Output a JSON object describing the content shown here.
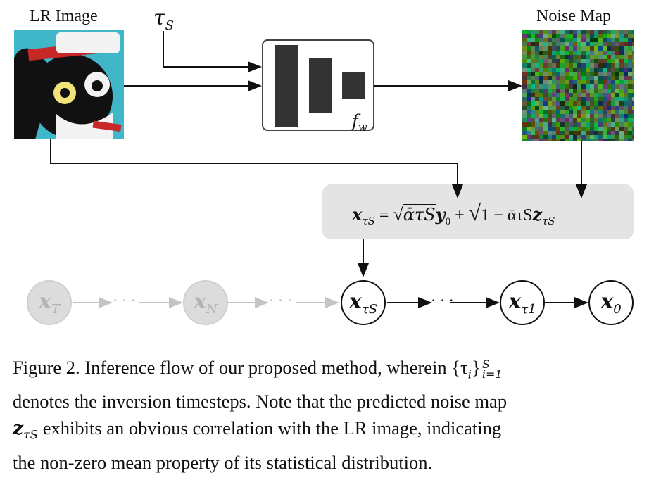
{
  "top": {
    "lr_label": "LR Image",
    "noise_label": "Noise Map",
    "tau_label": "τ",
    "tau_sub": "S",
    "net_label": "f",
    "net_sub": "w"
  },
  "formula": {
    "lhs": "x",
    "lhs_sub": "τS",
    "eq": " = ",
    "term1": "ᾱτS",
    "y": "y",
    "y_sub": "0",
    "plus": " + ",
    "term2": "1 − ᾱτS",
    "z": "z",
    "z_sub": "τS"
  },
  "chain": {
    "nodes": [
      {
        "sym": "x",
        "sub": "T",
        "state": "faded"
      },
      {
        "sym": "x",
        "sub": "N",
        "state": "faded"
      },
      {
        "sym": "x",
        "sub": "τS",
        "state": "active"
      },
      {
        "sym": "x",
        "sub": "τ1",
        "state": "active"
      },
      {
        "sym": "x",
        "sub": "0",
        "state": "active"
      }
    ],
    "dots": "· · ·"
  },
  "caption": {
    "line1": "Figure 2. Inference flow of our proposed method, wherein {τ",
    "line1_sub": "i",
    "line1_brace": "}",
    "line1_sup": "S",
    "line1_lowsub": "i=1",
    "line2": "denotes the inversion timesteps. Note that the predicted noise map",
    "line3_var": "z",
    "line3_sub": "τS",
    "line3": " exhibits an obvious correlation with the LR image, indicating",
    "line4": "the non-zero mean property of its statistical distribution."
  },
  "colors": {
    "formula_bg": "#e4e4e4",
    "lr_bg": "#3fb7c9",
    "faded_node": "#dcdcdc",
    "network_bar": "#333333"
  }
}
